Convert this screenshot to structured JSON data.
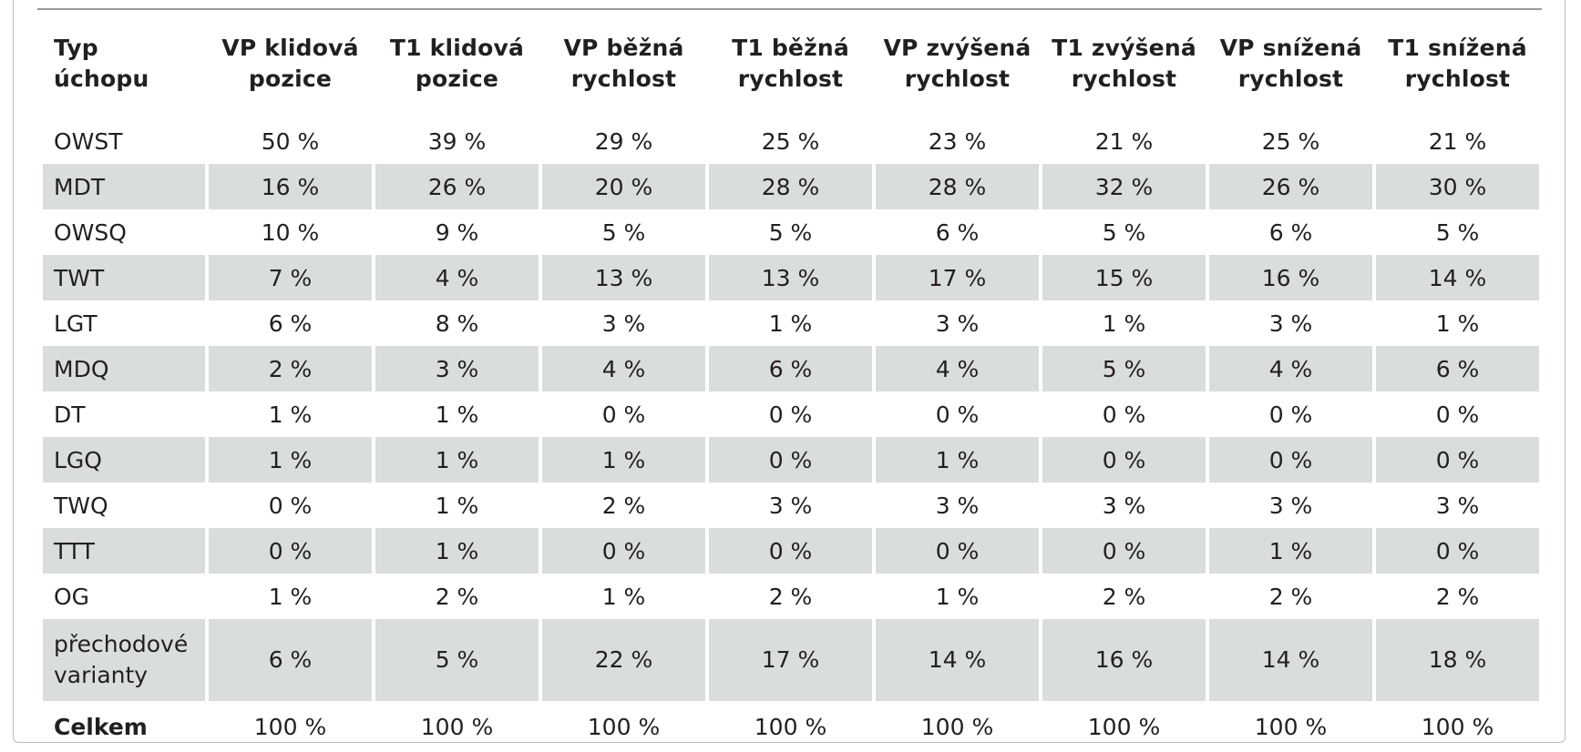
{
  "table": {
    "headers": [
      [
        "Typ",
        "úchopu"
      ],
      [
        "VP klidová",
        "pozice"
      ],
      [
        "T1 klidová",
        "pozice"
      ],
      [
        "VP běžná",
        "rychlost"
      ],
      [
        "T1 běžná",
        "rychlost"
      ],
      [
        "VP zvýšená",
        "rychlost"
      ],
      [
        "T1 zvýšená",
        "rychlost"
      ],
      [
        "VP snížená",
        "rychlost"
      ],
      [
        "T1 snížená",
        "rychlost"
      ]
    ],
    "rows": [
      {
        "label": [
          "OWST"
        ],
        "values": [
          "50 %",
          "39 %",
          "29 %",
          "25 %",
          "23 %",
          "21 %",
          "25 %",
          "21 %"
        ]
      },
      {
        "label": [
          "MDT"
        ],
        "values": [
          "16 %",
          "26 %",
          "20 %",
          "28 %",
          "28 %",
          "32 %",
          "26 %",
          "30 %"
        ]
      },
      {
        "label": [
          "OWSQ"
        ],
        "values": [
          "10 %",
          "9 %",
          "5 %",
          "5 %",
          "6 %",
          "5 %",
          "6 %",
          "5 %"
        ]
      },
      {
        "label": [
          "TWT"
        ],
        "values": [
          "7 %",
          "4 %",
          "13 %",
          "13 %",
          "17 %",
          "15 %",
          "16 %",
          "14 %"
        ]
      },
      {
        "label": [
          "LGT"
        ],
        "values": [
          "6 %",
          "8 %",
          "3 %",
          "1 %",
          "3 %",
          "1 %",
          "3 %",
          "1 %"
        ]
      },
      {
        "label": [
          "MDQ"
        ],
        "values": [
          "2 %",
          "3 %",
          "4 %",
          "6 %",
          "4 %",
          "5 %",
          "4 %",
          "6 %"
        ]
      },
      {
        "label": [
          "DT"
        ],
        "values": [
          "1 %",
          "1 %",
          "0 %",
          "0 %",
          "0 %",
          "0 %",
          "0 %",
          "0 %"
        ]
      },
      {
        "label": [
          "LGQ"
        ],
        "values": [
          "1 %",
          "1 %",
          "1 %",
          "0 %",
          "1 %",
          "0 %",
          "0 %",
          "0 %"
        ]
      },
      {
        "label": [
          "TWQ"
        ],
        "values": [
          "0 %",
          "1 %",
          "2 %",
          "3 %",
          "3 %",
          "3 %",
          "3 %",
          "3 %"
        ]
      },
      {
        "label": [
          "TTT"
        ],
        "values": [
          "0 %",
          "1 %",
          "0 %",
          "0 %",
          "0 %",
          "0 %",
          "1 %",
          "0 %"
        ]
      },
      {
        "label": [
          "OG"
        ],
        "values": [
          "1 %",
          "2 %",
          "1 %",
          "2 %",
          "1 %",
          "2 %",
          "2 %",
          "2 %"
        ]
      },
      {
        "label": [
          "přechodové",
          "varianty"
        ],
        "values": [
          "6 %",
          "5 %",
          "22 %",
          "17 %",
          "14 %",
          "16 %",
          "14 %",
          "18 %"
        ]
      }
    ],
    "total": {
      "label": "Celkem",
      "values": [
        "100 %",
        "100 %",
        "100 %",
        "100 %",
        "100 %",
        "100 %",
        "100 %",
        "100 %"
      ]
    }
  },
  "colors": {
    "shade": "#d9dedc",
    "text": "#231f20",
    "rule": "#9a9a9a"
  }
}
